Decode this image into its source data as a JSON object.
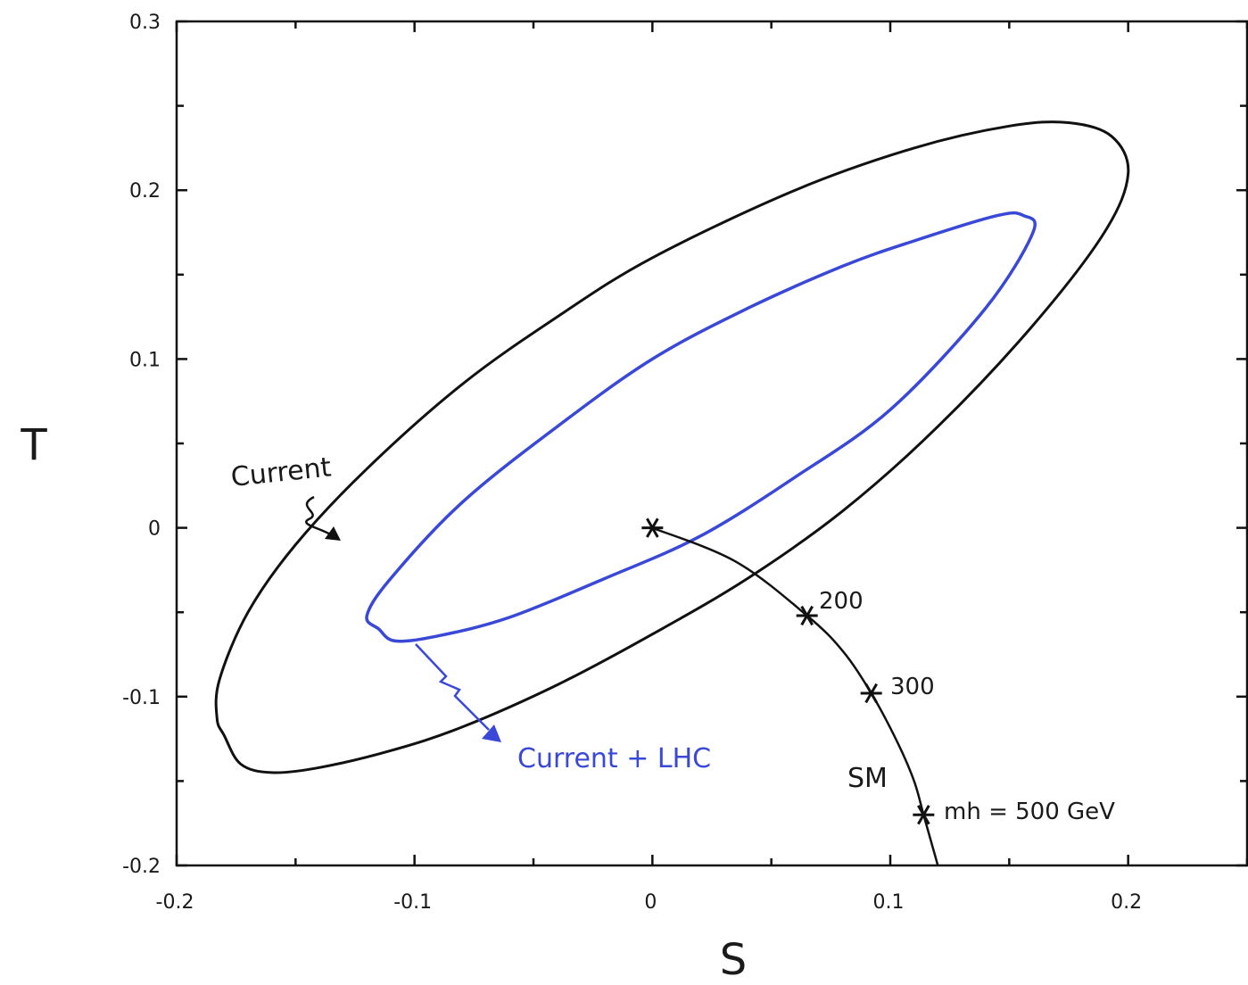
{
  "chart_data": {
    "type": "line",
    "title": "",
    "xlabel": "S",
    "ylabel": "T",
    "xlim": [
      -0.2,
      0.25
    ],
    "ylim": [
      -0.2,
      0.3
    ],
    "x_ticks": [
      -0.2,
      -0.1,
      0,
      0.1,
      0.2
    ],
    "x_tick_labels": [
      "-0.2",
      "-0.1",
      "0",
      "0.1",
      "0.2"
    ],
    "y_ticks": [
      -0.2,
      -0.1,
      0,
      0.1,
      0.2,
      0.3
    ],
    "y_tick_labels": [
      "-0.2",
      "-0.1",
      "0",
      "0.1",
      "0.2",
      "0.3"
    ],
    "grid": false,
    "colors": {
      "current": "#111111",
      "current_lhc": "#3a48d8",
      "sm": "#111111"
    },
    "series": [
      {
        "name": "Current",
        "kind": "contour",
        "points": [
          [
            -0.18,
            -0.123
          ],
          [
            -0.173,
            -0.14
          ],
          [
            -0.16,
            -0.145
          ],
          [
            -0.14,
            -0.142
          ],
          [
            -0.11,
            -0.132
          ],
          [
            -0.08,
            -0.118
          ],
          [
            -0.04,
            -0.093
          ],
          [
            0.0,
            -0.063
          ],
          [
            0.04,
            -0.03
          ],
          [
            0.08,
            0.01
          ],
          [
            0.12,
            0.06
          ],
          [
            0.16,
            0.12
          ],
          [
            0.19,
            0.175
          ],
          [
            0.2,
            0.21
          ],
          [
            0.193,
            0.232
          ],
          [
            0.175,
            0.24
          ],
          [
            0.15,
            0.238
          ],
          [
            0.11,
            0.225
          ],
          [
            0.06,
            0.2
          ],
          [
            0.0,
            0.16
          ],
          [
            -0.04,
            0.125
          ],
          [
            -0.08,
            0.085
          ],
          [
            -0.12,
            0.035
          ],
          [
            -0.15,
            -0.01
          ],
          [
            -0.17,
            -0.05
          ],
          [
            -0.182,
            -0.09
          ],
          [
            -0.183,
            -0.113
          ],
          [
            -0.18,
            -0.123
          ]
        ]
      },
      {
        "name": "Current + LHC",
        "kind": "contour",
        "points": [
          [
            -0.115,
            -0.06
          ],
          [
            -0.108,
            -0.067
          ],
          [
            -0.09,
            -0.064
          ],
          [
            -0.06,
            -0.053
          ],
          [
            -0.02,
            -0.03
          ],
          [
            0.02,
            -0.005
          ],
          [
            0.06,
            0.03
          ],
          [
            0.1,
            0.07
          ],
          [
            0.14,
            0.13
          ],
          [
            0.16,
            0.175
          ],
          [
            0.156,
            0.185
          ],
          [
            0.145,
            0.185
          ],
          [
            0.11,
            0.17
          ],
          [
            0.08,
            0.155
          ],
          [
            0.04,
            0.13
          ],
          [
            0.0,
            0.1
          ],
          [
            -0.04,
            0.06
          ],
          [
            -0.08,
            0.015
          ],
          [
            -0.11,
            -0.03
          ],
          [
            -0.12,
            -0.052
          ],
          [
            -0.115,
            -0.06
          ]
        ]
      },
      {
        "name": "SM",
        "kind": "curve",
        "points": [
          [
            0.0,
            0.0
          ],
          [
            0.035,
            -0.02
          ],
          [
            0.065,
            -0.052
          ],
          [
            0.08,
            -0.073
          ],
          [
            0.092,
            -0.098
          ],
          [
            0.103,
            -0.127
          ],
          [
            0.11,
            -0.15
          ],
          [
            0.114,
            -0.17
          ],
          [
            0.118,
            -0.19
          ],
          [
            0.12,
            -0.2
          ]
        ],
        "markers": [
          {
            "x": 0.0,
            "y": 0.0,
            "label": ""
          },
          {
            "x": 0.065,
            "y": -0.052,
            "label": "200"
          },
          {
            "x": 0.092,
            "y": -0.098,
            "label": "300"
          },
          {
            "x": 0.114,
            "y": -0.17,
            "label": "mh = 500 GeV"
          }
        ]
      }
    ],
    "annotations": {
      "current_label": "Current",
      "current_lhc_label": "Current + LHC",
      "sm_label": "SM",
      "mass_label": "mh = 500 GeV",
      "m200": "200",
      "m300": "300"
    }
  }
}
